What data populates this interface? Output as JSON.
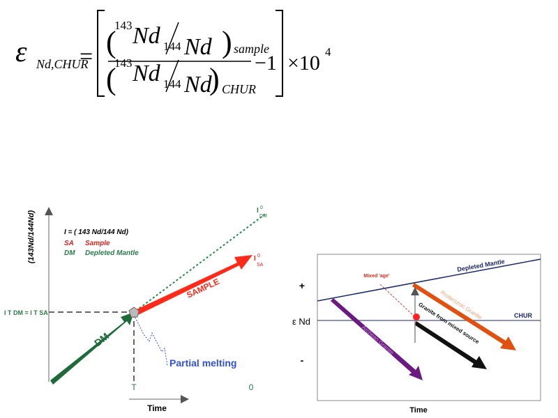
{
  "formula": {
    "epsilon": "ε",
    "epsilon_sub": "Nd,CHUR",
    "equals": "=",
    "num_mass1": "143",
    "num_nd1": "Nd",
    "num_mass2": "144",
    "num_nd2": "Nd",
    "num_sub": "sample",
    "den_mass1": "143",
    "den_nd1": "Nd",
    "den_mass2": "144",
    "den_nd2": "Nd",
    "den_sub": "CHUR",
    "minus_one": "−1",
    "times": "×10",
    "exponent": "4"
  },
  "left_diagram": {
    "y_axis_label": "(143Nd/144Nd)",
    "definition": "I = ( 143 Nd/144 Nd)",
    "legend": [
      {
        "abbr": "SA",
        "name": "Sample"
      },
      {
        "abbr": "DM",
        "name": "Depleted Mantle"
      }
    ],
    "i_dm_label": "I",
    "i_dm_sub": "DM",
    "i_dm_sup": "0",
    "i_sa_label": "I",
    "i_sa_sub": "SA",
    "i_sa_sup": "0",
    "intercept_label": "I T DM = I T SA",
    "sample_arrow": "SAMPLE",
    "dm_arrow": "DM",
    "partial_melting": "Partial melting",
    "t_tick": "T",
    "zero_tick": "0",
    "x_axis_label": "Time"
  },
  "right_diagram": {
    "depleted_mantle": "Depleted Mantle",
    "chur": "CHUR",
    "mixed_age": "Mixed 'age'",
    "proterozoic": "Proterozoic Granite",
    "archean": "Archean Granite",
    "mixed_source": "Granite from mixed source",
    "plus": "+",
    "minus": "-",
    "y_axis_label": "ε Nd",
    "x_axis_label": "Time"
  }
}
